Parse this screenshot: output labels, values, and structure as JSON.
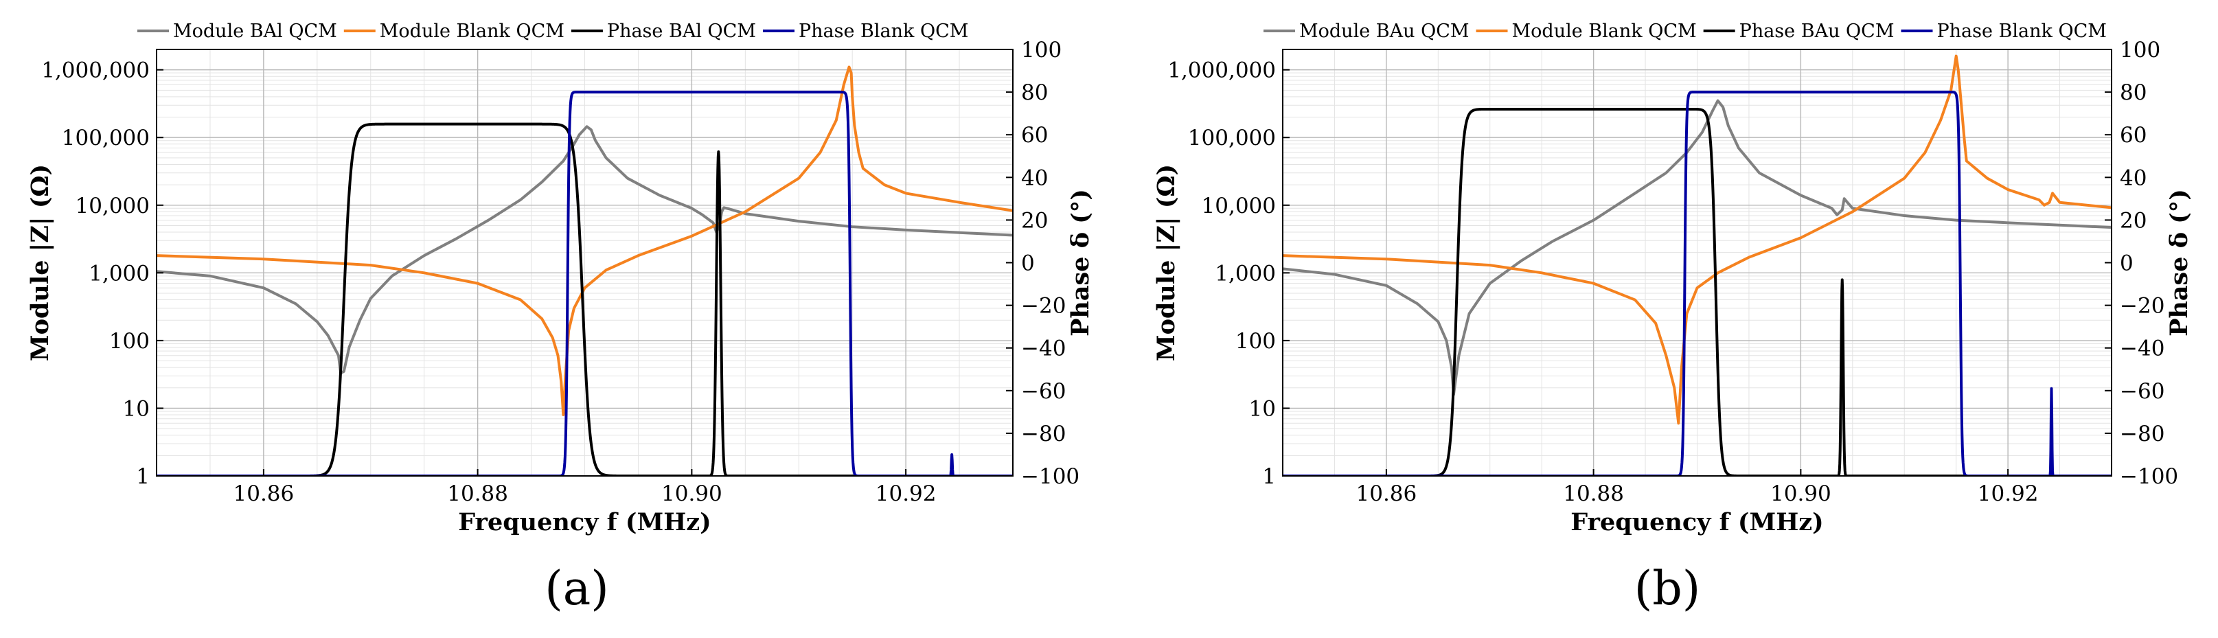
{
  "chart_data": [
    {
      "type": "line",
      "panel_label": "(a)",
      "xlabel": "Frequency f (MHz)",
      "ylabel_left": "Module |Z| (Ω)",
      "ylabel_right": "Phase δ (°)",
      "xlim": [
        10.85,
        10.93
      ],
      "ylim_left": [
        1,
        2000000
      ],
      "ylim_right": [
        -100,
        100
      ],
      "y_left_scale": "log",
      "grid": true,
      "legend_position": "top",
      "x_ticks": [
        "10.86",
        "10.88",
        "10.90",
        "10.92"
      ],
      "y_left_ticks": [
        "1",
        "10",
        "100",
        "1,000",
        "10,000",
        "100,000",
        "1,000,000"
      ],
      "y_right_ticks": [
        "100",
        "80",
        "60",
        "40",
        "20",
        "0",
        "−20",
        "−40",
        "−60",
        "−80",
        "−100"
      ],
      "series": [
        {
          "name": "Module BAl QCM",
          "axis": "left",
          "color": "#808080",
          "x": [
            10.85,
            10.855,
            10.86,
            10.863,
            10.865,
            10.866,
            10.867,
            10.8672,
            10.8675,
            10.868,
            10.869,
            10.87,
            10.872,
            10.875,
            10.878,
            10.881,
            10.884,
            10.886,
            10.888,
            10.889,
            10.8895,
            10.8902,
            10.8906,
            10.891,
            10.892,
            10.894,
            10.897,
            10.9,
            10.901,
            10.902,
            10.9023,
            10.9026,
            10.9028,
            10.903,
            10.9035,
            10.905,
            10.91,
            10.915,
            10.92,
            10.93
          ],
          "y": [
            1050,
            900,
            600,
            350,
            190,
            120,
            60,
            33,
            35,
            80,
            200,
            420,
            900,
            1800,
            3200,
            6000,
            12000,
            22000,
            45000,
            80000,
            110000,
            145000,
            130000,
            90000,
            50000,
            25000,
            14000,
            9000,
            7200,
            5500,
            4000,
            5200,
            8000,
            9200,
            8800,
            7500,
            5800,
            4800,
            4300,
            3600
          ]
        },
        {
          "name": "Module Blank QCM",
          "axis": "left",
          "color": "#F5821F",
          "x": [
            10.85,
            10.86,
            10.87,
            10.875,
            10.88,
            10.884,
            10.886,
            10.887,
            10.8875,
            10.8878,
            10.888,
            10.8882,
            10.8885,
            10.889,
            10.89,
            10.892,
            10.895,
            10.9,
            10.905,
            10.91,
            10.912,
            10.9135,
            10.9142,
            10.9147,
            10.9149,
            10.915,
            10.9152,
            10.9156,
            10.916,
            10.918,
            10.92,
            10.925,
            10.93
          ],
          "y": [
            1800,
            1600,
            1300,
            1000,
            700,
            400,
            210,
            110,
            60,
            25,
            8,
            30,
            140,
            300,
            600,
            1100,
            1800,
            3500,
            8000,
            25000,
            60000,
            180000,
            600000,
            1100000,
            900000,
            400000,
            150000,
            60000,
            35000,
            20000,
            15000,
            11000,
            8300
          ]
        }
      ]
    },
    {
      "type": "line",
      "panel_label": "(b)",
      "xlabel": "Frequency f (MHz)",
      "ylabel_left": "Module |Z| (Ω)",
      "ylabel_right": "Phase δ (°)",
      "xlim": [
        10.85,
        10.93
      ],
      "ylim_left": [
        1,
        2000000
      ],
      "ylim_right": [
        -100,
        100
      ],
      "y_left_scale": "log",
      "grid": true,
      "legend_position": "top",
      "x_ticks": [
        "10.86",
        "10.88",
        "10.90",
        "10.92"
      ],
      "y_left_ticks": [
        "1",
        "10",
        "100",
        "1,000",
        "10,000",
        "100,000",
        "1,000,000"
      ],
      "y_right_ticks": [
        "100",
        "80",
        "60",
        "40",
        "20",
        "0",
        "−20",
        "−40",
        "−60",
        "−80",
        "−100"
      ],
      "series": [
        {
          "name": "Module BAu QCM",
          "axis": "left",
          "color": "#808080",
          "x": [
            10.85,
            10.855,
            10.86,
            10.863,
            10.865,
            10.8658,
            10.8663,
            10.8665,
            10.867,
            10.868,
            10.87,
            10.873,
            10.876,
            10.88,
            10.884,
            10.887,
            10.889,
            10.8905,
            10.8915,
            10.892,
            10.8925,
            10.893,
            10.894,
            10.896,
            10.9,
            10.903,
            10.9035,
            10.904,
            10.9042,
            10.9045,
            10.905,
            10.91,
            10.915,
            10.92,
            10.93
          ],
          "y": [
            1150,
            950,
            650,
            350,
            190,
            100,
            40,
            16,
            60,
            250,
            700,
            1500,
            2900,
            6000,
            15000,
            30000,
            60000,
            120000,
            250000,
            350000,
            280000,
            150000,
            70000,
            30000,
            14000,
            9000,
            7200,
            8500,
            12500,
            11000,
            9000,
            7000,
            6000,
            5500,
            4700
          ]
        },
        {
          "name": "Module Blank QCM",
          "axis": "left",
          "color": "#F5821F",
          "x": [
            10.85,
            10.86,
            10.87,
            10.875,
            10.88,
            10.884,
            10.886,
            10.887,
            10.8878,
            10.8882,
            10.8885,
            10.889,
            10.89,
            10.892,
            10.895,
            10.9,
            10.905,
            10.91,
            10.912,
            10.9135,
            10.9145,
            10.915,
            10.9152,
            10.9155,
            10.9158,
            10.916,
            10.918,
            10.92,
            10.923,
            10.9235,
            10.924,
            10.9243,
            10.925,
            10.93
          ],
          "y": [
            1800,
            1600,
            1300,
            1000,
            700,
            400,
            180,
            60,
            20,
            6,
            40,
            250,
            600,
            1000,
            1700,
            3300,
            8000,
            25000,
            60000,
            180000,
            500000,
            1600000,
            1000000,
            300000,
            90000,
            45000,
            25000,
            17000,
            12000,
            10000,
            11000,
            15000,
            11000,
            9200
          ]
        }
      ]
    }
  ]
}
